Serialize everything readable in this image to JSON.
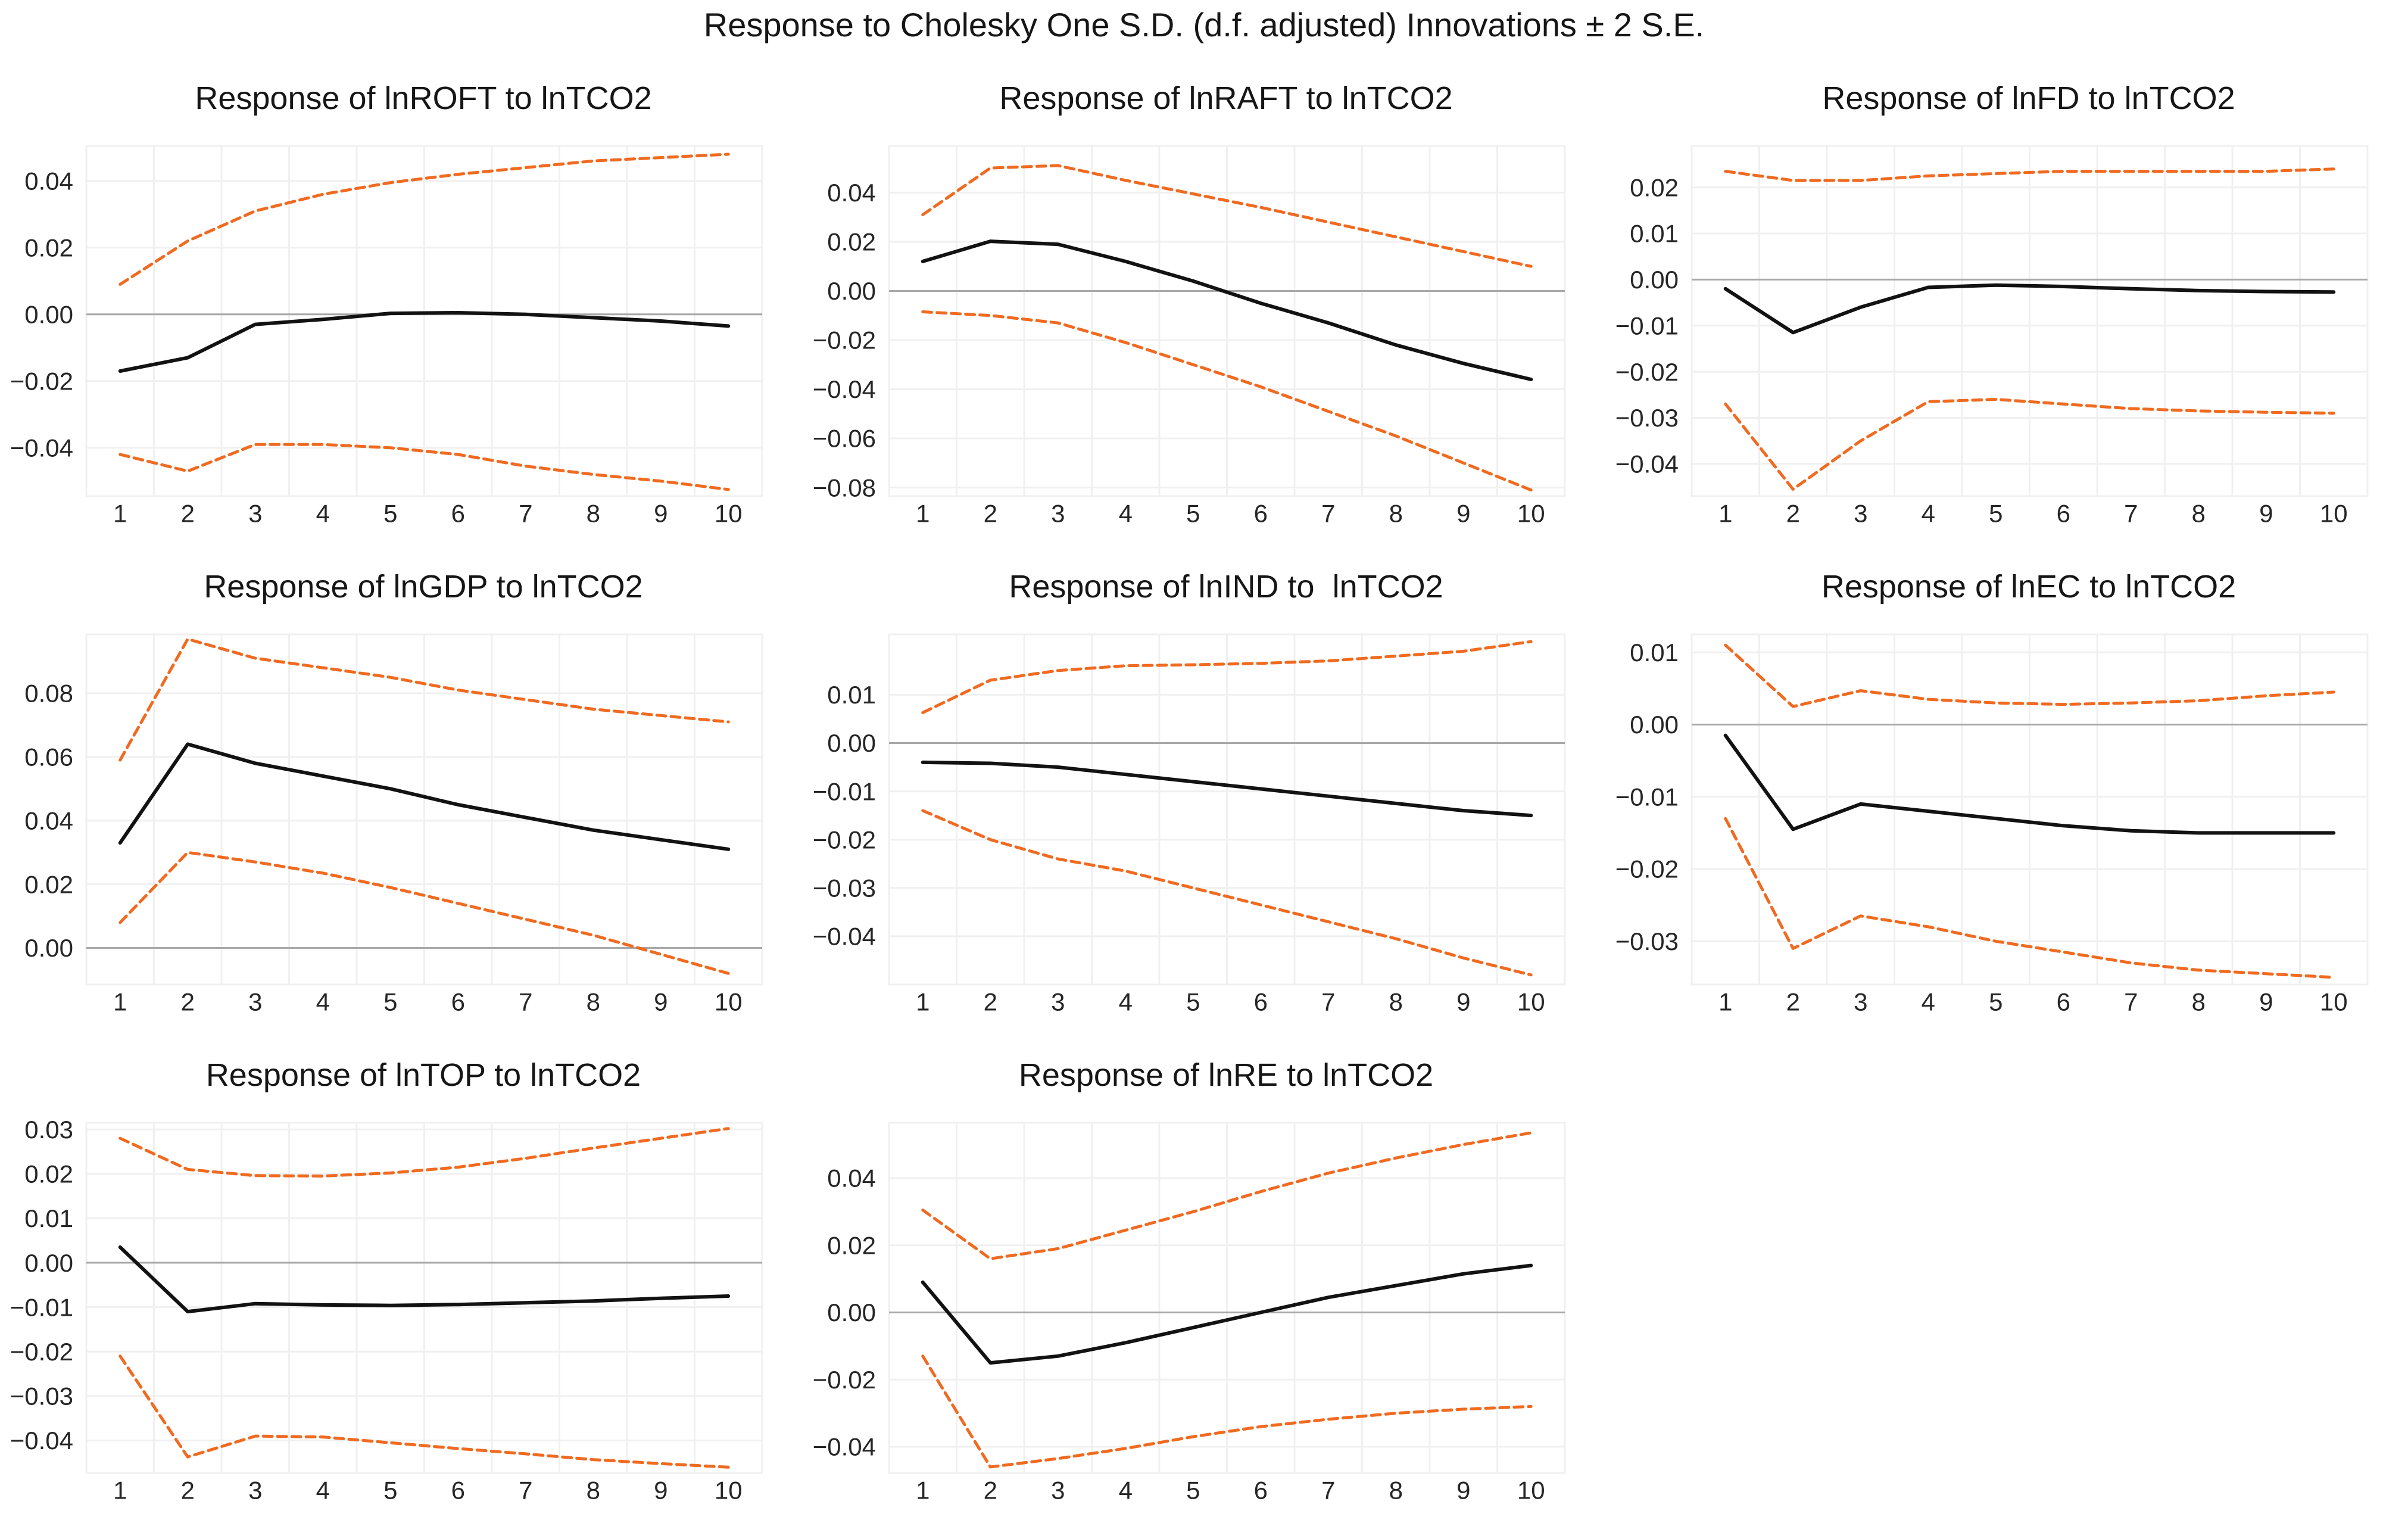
{
  "figure": {
    "title": "Response to Cholesky One S.D. (d.f. adjusted) Innovations ± 2 S.E."
  },
  "style": {
    "response_line_color": "#121212",
    "band_line_color": "#F06A20",
    "grid_color": "#F0F0F0",
    "zero_line_color": "#A8A8A8",
    "text_color": "#262626",
    "background": "#FFFFFF"
  },
  "chart_data": [
    {
      "key": "lnROFT",
      "type": "line",
      "title": "Response of lnROFT to lnTCO2",
      "x": [
        1,
        2,
        3,
        4,
        5,
        6,
        7,
        8,
        9,
        10
      ],
      "xlabel": "",
      "ylabel": "",
      "ylim": [
        -0.0545,
        0.0505
      ],
      "yticks": [
        0.04,
        0.02,
        0.0,
        -0.02,
        -0.04
      ],
      "grid": true,
      "legend": "none",
      "series": [
        {
          "name": "response",
          "style": "solid-black",
          "values": [
            -0.017,
            -0.013,
            -0.003,
            -0.0015,
            0.0003,
            0.0005,
            0.0,
            -0.001,
            -0.002,
            -0.0035
          ]
        },
        {
          "name": "upper-2se-band",
          "style": "dashed-orange",
          "values": [
            0.009,
            0.022,
            0.031,
            0.036,
            0.0395,
            0.042,
            0.044,
            0.046,
            0.047,
            0.048
          ]
        },
        {
          "name": "lower-2se-band",
          "style": "dashed-orange",
          "values": [
            -0.042,
            -0.047,
            -0.039,
            -0.039,
            -0.04,
            -0.042,
            -0.0455,
            -0.048,
            -0.05,
            -0.0525
          ]
        }
      ]
    },
    {
      "key": "lnRAFT",
      "type": "line",
      "title": "Response of lnRAFT to lnTCO2",
      "x": [
        1,
        2,
        3,
        4,
        5,
        6,
        7,
        8,
        9,
        10
      ],
      "xlabel": "",
      "ylabel": "",
      "ylim": [
        -0.0835,
        0.059
      ],
      "yticks": [
        0.04,
        0.02,
        0.0,
        -0.02,
        -0.04,
        -0.06,
        -0.08
      ],
      "grid": true,
      "legend": "none",
      "series": [
        {
          "name": "response",
          "style": "solid-black",
          "values": [
            0.012,
            0.0202,
            0.019,
            0.012,
            0.004,
            -0.005,
            -0.013,
            -0.022,
            -0.0295,
            -0.036
          ]
        },
        {
          "name": "upper-2se-band",
          "style": "dashed-orange",
          "values": [
            0.031,
            0.05,
            0.051,
            0.045,
            0.0395,
            0.034,
            0.028,
            0.022,
            0.016,
            0.01
          ]
        },
        {
          "name": "lower-2se-band",
          "style": "dashed-orange",
          "values": [
            -0.0085,
            -0.01,
            -0.013,
            -0.021,
            -0.03,
            -0.039,
            -0.049,
            -0.059,
            -0.07,
            -0.081
          ]
        }
      ]
    },
    {
      "key": "lnFD",
      "type": "line",
      "title": "Response of lnFD to lnTCO2",
      "x": [
        1,
        2,
        3,
        4,
        5,
        6,
        7,
        8,
        9,
        10
      ],
      "xlabel": "",
      "ylabel": "",
      "ylim": [
        -0.047,
        0.029
      ],
      "yticks": [
        0.02,
        0.01,
        0.0,
        -0.01,
        -0.02,
        -0.03,
        -0.04
      ],
      "grid": true,
      "legend": "none",
      "series": [
        {
          "name": "response",
          "style": "solid-black",
          "values": [
            -0.002,
            -0.0115,
            -0.006,
            -0.0017,
            -0.0012,
            -0.0015,
            -0.002,
            -0.0024,
            -0.0026,
            -0.0027
          ]
        },
        {
          "name": "upper-2se-band",
          "style": "dashed-orange",
          "values": [
            0.0235,
            0.0215,
            0.0215,
            0.0225,
            0.023,
            0.0235,
            0.0235,
            0.0235,
            0.0235,
            0.024
          ]
        },
        {
          "name": "lower-2se-band",
          "style": "dashed-orange",
          "values": [
            -0.027,
            -0.0455,
            -0.035,
            -0.0265,
            -0.026,
            -0.027,
            -0.028,
            -0.0285,
            -0.0288,
            -0.029
          ]
        }
      ]
    },
    {
      "key": "lnGDP",
      "type": "line",
      "title": "Response of lnGDP to lnTCO2",
      "x": [
        1,
        2,
        3,
        4,
        5,
        6,
        7,
        8,
        9,
        10
      ],
      "xlabel": "",
      "ylabel": "",
      "ylim": [
        -0.0115,
        0.0985
      ],
      "yticks": [
        0.08,
        0.06,
        0.04,
        0.02,
        0.0
      ],
      "grid": true,
      "legend": "none",
      "series": [
        {
          "name": "response",
          "style": "solid-black",
          "values": [
            0.033,
            0.064,
            0.058,
            0.054,
            0.05,
            0.045,
            0.041,
            0.037,
            0.034,
            0.031
          ]
        },
        {
          "name": "upper-2se-band",
          "style": "dashed-orange",
          "values": [
            0.059,
            0.097,
            0.091,
            0.088,
            0.085,
            0.081,
            0.078,
            0.075,
            0.073,
            0.071
          ]
        },
        {
          "name": "lower-2se-band",
          "style": "dashed-orange",
          "values": [
            0.008,
            0.03,
            0.027,
            0.0235,
            0.019,
            0.014,
            0.009,
            0.004,
            -0.002,
            -0.008
          ]
        }
      ]
    },
    {
      "key": "lnIND",
      "type": "line",
      "title": "Response of lnIND to  lnTCO2",
      "x": [
        1,
        2,
        3,
        4,
        5,
        6,
        7,
        8,
        9,
        10
      ],
      "xlabel": "",
      "ylabel": "",
      "ylim": [
        -0.05,
        0.0225
      ],
      "yticks": [
        0.01,
        0.0,
        -0.01,
        -0.02,
        -0.03,
        -0.04
      ],
      "grid": true,
      "legend": "none",
      "series": [
        {
          "name": "response",
          "style": "solid-black",
          "values": [
            -0.004,
            -0.0042,
            -0.005,
            -0.0065,
            -0.008,
            -0.0095,
            -0.011,
            -0.0125,
            -0.014,
            -0.015
          ]
        },
        {
          "name": "upper-2se-band",
          "style": "dashed-orange",
          "values": [
            0.0063,
            0.013,
            0.015,
            0.016,
            0.0162,
            0.0165,
            0.017,
            0.018,
            0.019,
            0.021
          ]
        },
        {
          "name": "lower-2se-band",
          "style": "dashed-orange",
          "values": [
            -0.014,
            -0.02,
            -0.024,
            -0.0265,
            -0.03,
            -0.0335,
            -0.037,
            -0.0405,
            -0.0445,
            -0.048
          ]
        }
      ]
    },
    {
      "key": "lnEC",
      "type": "line",
      "title": "Response of lnEC to lnTCO2",
      "x": [
        1,
        2,
        3,
        4,
        5,
        6,
        7,
        8,
        9,
        10
      ],
      "xlabel": "",
      "ylabel": "",
      "ylim": [
        -0.036,
        0.0125
      ],
      "yticks": [
        0.01,
        0.0,
        -0.01,
        -0.02,
        -0.03
      ],
      "grid": true,
      "legend": "none",
      "series": [
        {
          "name": "response",
          "style": "solid-black",
          "values": [
            -0.0015,
            -0.0145,
            -0.011,
            -0.012,
            -0.013,
            -0.014,
            -0.0147,
            -0.015,
            -0.015,
            -0.015
          ]
        },
        {
          "name": "upper-2se-band",
          "style": "dashed-orange",
          "values": [
            0.011,
            0.0025,
            0.0047,
            0.0035,
            0.003,
            0.0028,
            0.003,
            0.0033,
            0.004,
            0.0045
          ]
        },
        {
          "name": "lower-2se-band",
          "style": "dashed-orange",
          "values": [
            -0.013,
            -0.031,
            -0.0265,
            -0.028,
            -0.03,
            -0.0315,
            -0.033,
            -0.034,
            -0.0345,
            -0.035
          ]
        }
      ]
    },
    {
      "key": "lnTOP",
      "type": "line",
      "title": "Response of lnTOP to lnTCO2",
      "x": [
        1,
        2,
        3,
        4,
        5,
        6,
        7,
        8,
        9,
        10
      ],
      "xlabel": "",
      "ylabel": "",
      "ylim": [
        -0.0473,
        0.0315
      ],
      "yticks": [
        0.03,
        0.02,
        0.01,
        0.0,
        -0.01,
        -0.02,
        -0.03,
        -0.04
      ],
      "grid": true,
      "legend": "none",
      "series": [
        {
          "name": "response",
          "style": "solid-black",
          "values": [
            0.0035,
            -0.011,
            -0.0092,
            -0.0095,
            -0.0096,
            -0.0094,
            -0.009,
            -0.0086,
            -0.008,
            -0.0075
          ]
        },
        {
          "name": "upper-2se-band",
          "style": "dashed-orange",
          "values": [
            0.028,
            0.021,
            0.0196,
            0.0195,
            0.0202,
            0.0215,
            0.0235,
            0.0258,
            0.028,
            0.0302
          ]
        },
        {
          "name": "lower-2se-band",
          "style": "dashed-orange",
          "values": [
            -0.021,
            -0.0437,
            -0.039,
            -0.0392,
            -0.0405,
            -0.0418,
            -0.043,
            -0.0443,
            -0.0452,
            -0.046
          ]
        }
      ]
    },
    {
      "key": "lnRE",
      "type": "line",
      "title": "Response of lnRE to lnTCO2",
      "x": [
        1,
        2,
        3,
        4,
        5,
        6,
        7,
        8,
        9,
        10
      ],
      "xlabel": "",
      "ylabel": "",
      "ylim": [
        -0.0478,
        0.0565
      ],
      "yticks": [
        0.04,
        0.02,
        0.0,
        -0.02,
        -0.04
      ],
      "grid": true,
      "legend": "none",
      "series": [
        {
          "name": "response",
          "style": "solid-black",
          "values": [
            0.009,
            -0.015,
            -0.013,
            -0.009,
            -0.0045,
            0.0,
            0.0045,
            0.008,
            0.0115,
            0.014
          ]
        },
        {
          "name": "upper-2se-band",
          "style": "dashed-orange",
          "values": [
            0.0305,
            0.016,
            0.019,
            0.0245,
            0.03,
            0.036,
            0.0415,
            0.046,
            0.05,
            0.0535
          ]
        },
        {
          "name": "lower-2se-band",
          "style": "dashed-orange",
          "values": [
            -0.013,
            -0.046,
            -0.0435,
            -0.0405,
            -0.037,
            -0.034,
            -0.0318,
            -0.03,
            -0.0288,
            -0.028
          ]
        }
      ]
    }
  ]
}
